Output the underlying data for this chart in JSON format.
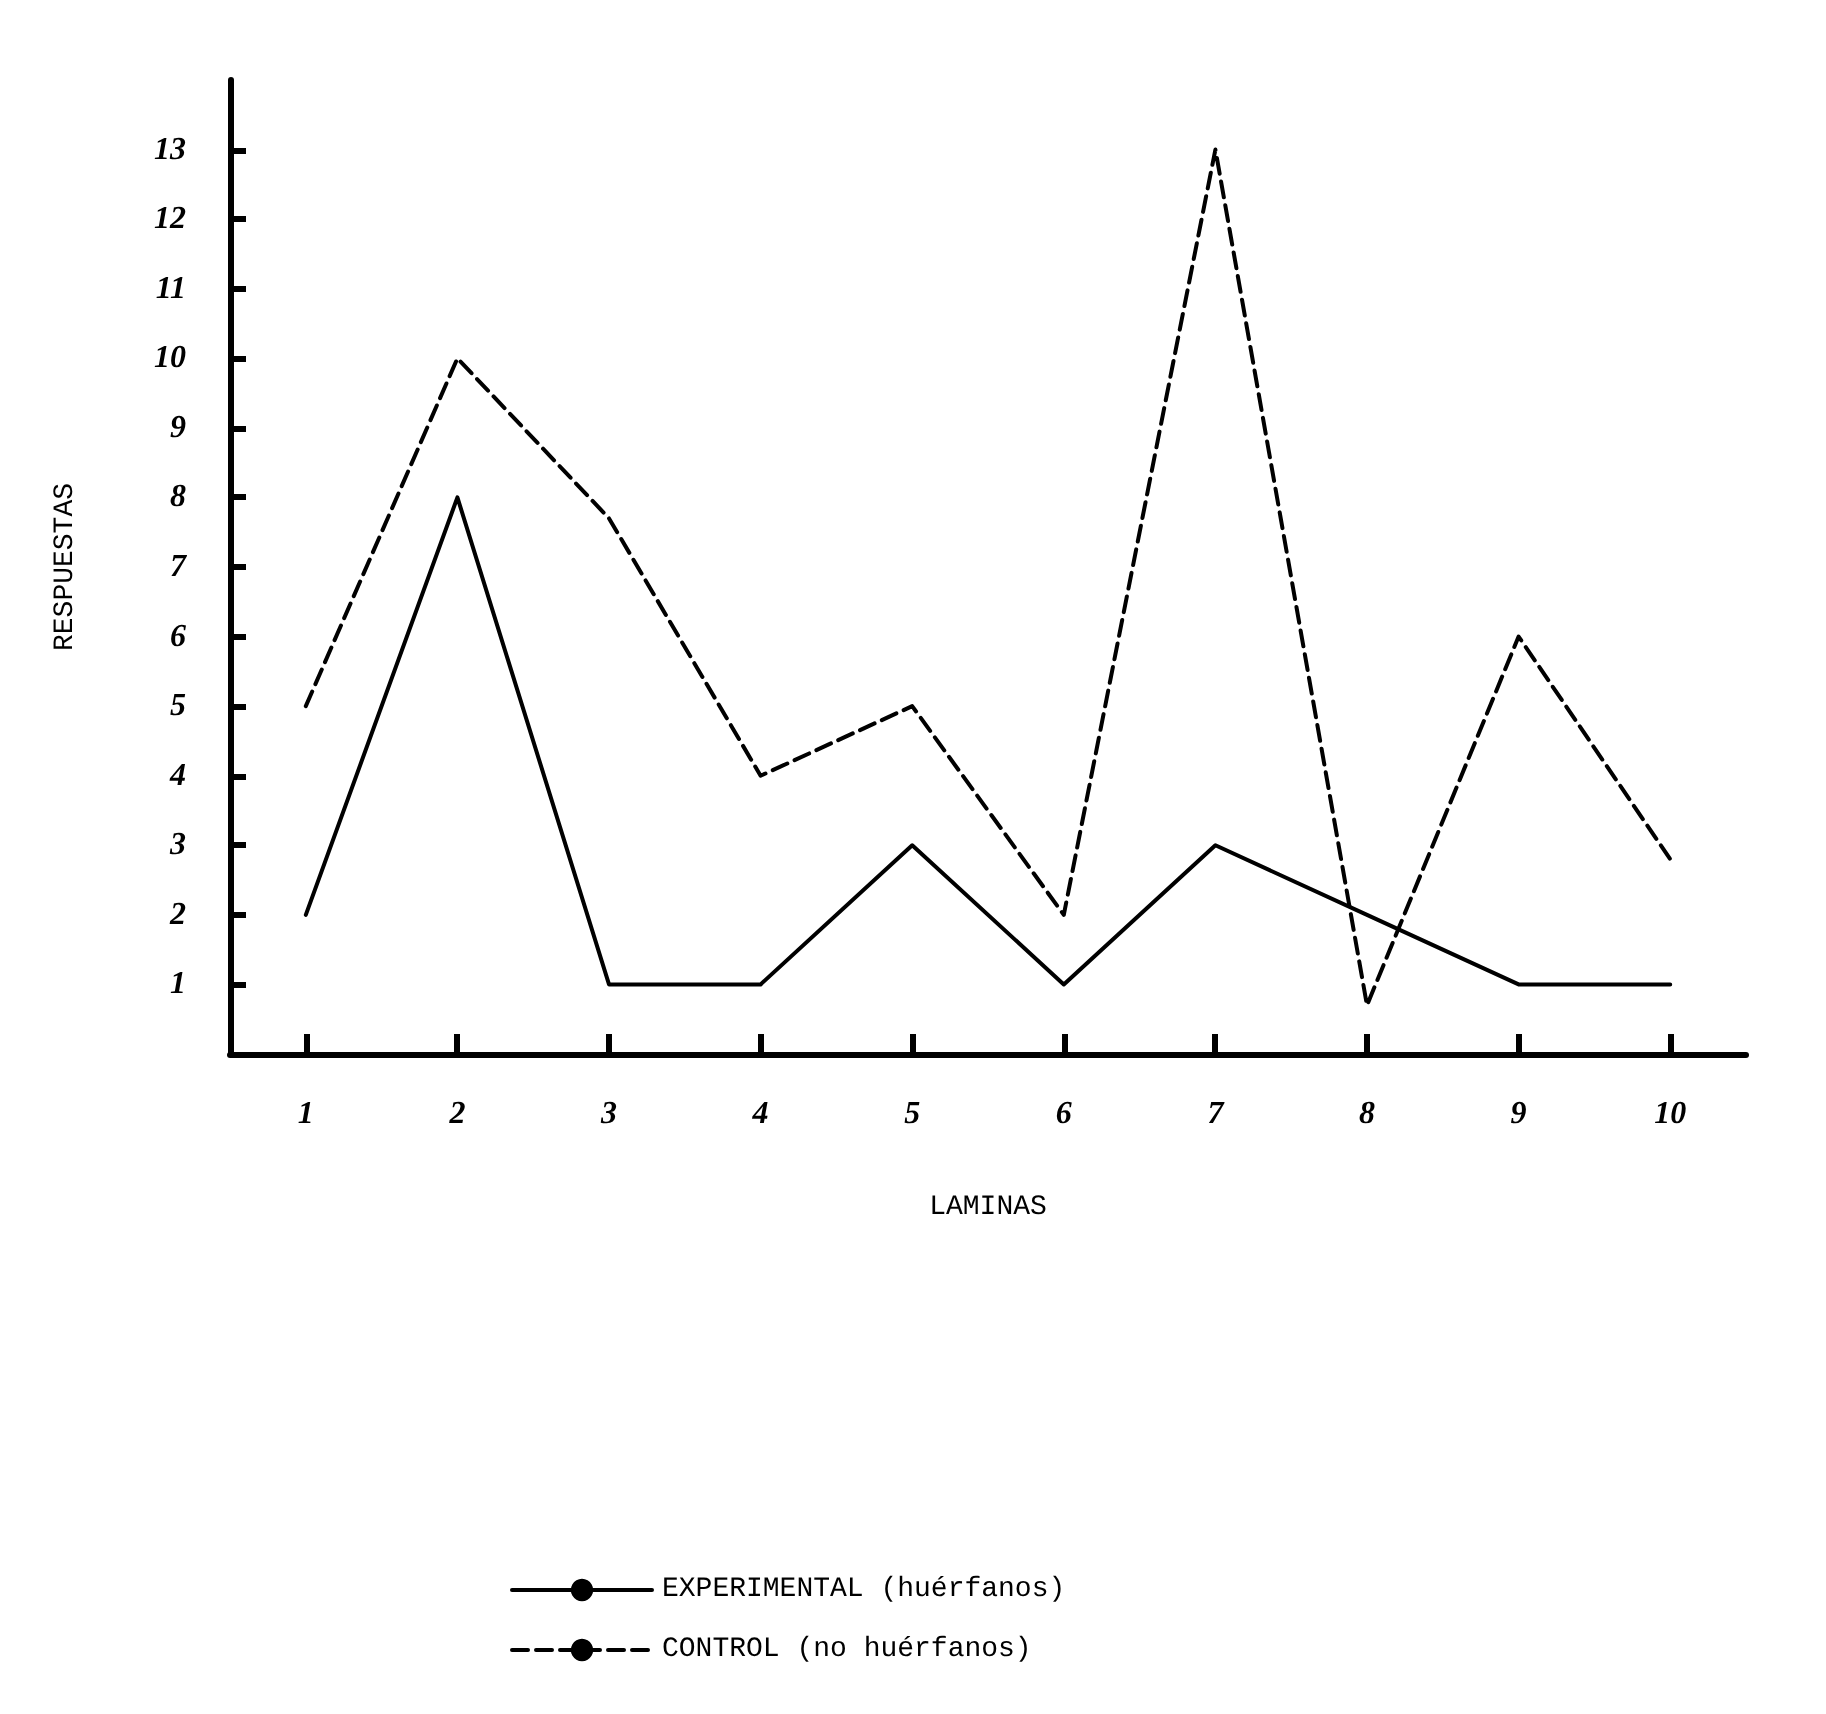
{
  "chart_data": {
    "type": "line",
    "xlabel": "LAMINAS",
    "ylabel": "RESPUESTAS",
    "categories": [
      "1",
      "2",
      "3",
      "4",
      "5",
      "6",
      "7",
      "8",
      "9",
      "10"
    ],
    "series": [
      {
        "name": "EXPERIMENTAL (huérfanos)",
        "color": "#000000",
        "line_style": "solid",
        "values": [
          2,
          8,
          1,
          1,
          3,
          1,
          3,
          2,
          1,
          1
        ]
      },
      {
        "name": "CONTROL (no huérfanos)",
        "color": "#000000",
        "line_style": "dashed",
        "values": [
          5,
          10,
          7.7,
          4,
          5,
          2,
          13,
          0.7,
          6,
          2.8
        ]
      }
    ],
    "ylim": [
      0,
      14
    ],
    "yticks": [
      1,
      2,
      3,
      4,
      5,
      6,
      7,
      8,
      9,
      10,
      11,
      12,
      13
    ],
    "grid": false,
    "legend": "bottom",
    "marker": "none"
  }
}
